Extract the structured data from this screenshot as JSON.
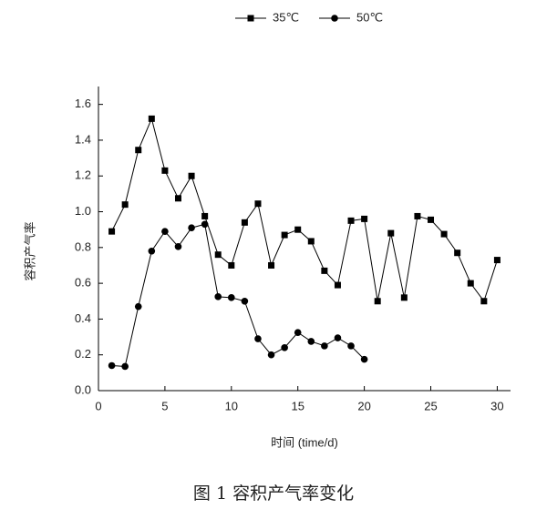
{
  "chart_data": {
    "type": "line",
    "title": "图 1 容积产气率变化",
    "xlabel": "时间 (time/d)",
    "ylabel": "容积产气率",
    "xlim": [
      0,
      31
    ],
    "xticks": [
      0,
      5,
      10,
      15,
      20,
      25,
      30
    ],
    "ylim": [
      0,
      1.7
    ],
    "yticks": [
      {
        "value": 0,
        "label": "0.0"
      },
      0.2,
      0.4,
      0.6,
      0.8,
      {
        "value": 1,
        "label": "1.0"
      },
      1.2,
      1.4,
      1.6
    ],
    "series": [
      {
        "name": "35℃",
        "color": "#000000",
        "marker": "square",
        "x": [
          1,
          2,
          3,
          4,
          5,
          6,
          7,
          8,
          9,
          10,
          11,
          12,
          13,
          14,
          15,
          16,
          17,
          18,
          19,
          20,
          21,
          22,
          23,
          24,
          25,
          26,
          27,
          28,
          29,
          30
        ],
        "values": [
          0.89,
          1.04,
          1.345,
          1.52,
          1.23,
          1.075,
          1.2,
          0.975,
          0.76,
          0.7,
          0.94,
          1.045,
          0.7,
          0.87,
          0.9,
          0.835,
          0.67,
          0.59,
          0.95,
          0.96,
          0.5,
          0.88,
          0.52,
          0.975,
          0.955,
          0.875,
          0.77,
          0.6,
          0.5,
          0.73
        ]
      },
      {
        "name": "50℃",
        "color": "#000000",
        "marker": "circle",
        "x": [
          1,
          2,
          3,
          4,
          5,
          6,
          7,
          8,
          9,
          10,
          11,
          12,
          13,
          14,
          15,
          16,
          17,
          18,
          19,
          20
        ],
        "values": [
          0.14,
          0.135,
          0.47,
          0.78,
          0.89,
          0.805,
          0.91,
          0.93,
          0.525,
          0.52,
          0.5,
          0.29,
          0.2,
          0.24,
          0.325,
          0.275,
          0.25,
          0.295,
          0.25,
          0.175
        ]
      }
    ]
  }
}
